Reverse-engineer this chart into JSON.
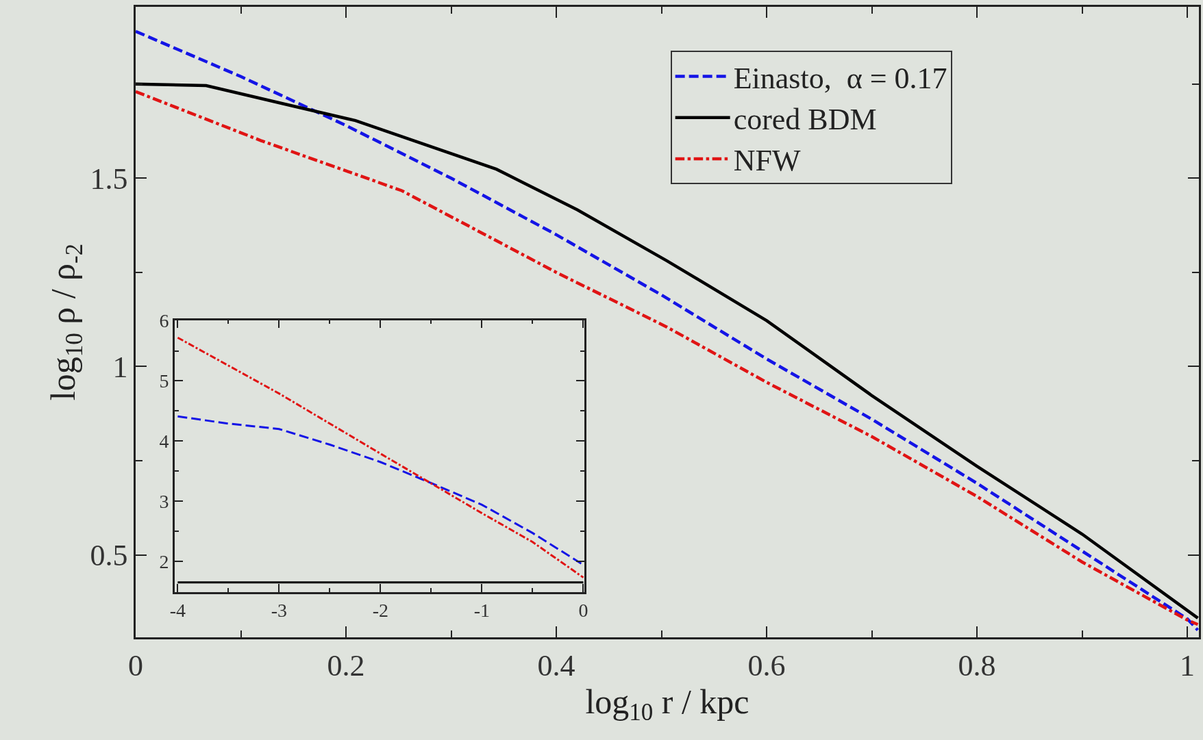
{
  "chart_data": [
    {
      "type": "line",
      "xlabel": "log$_{10}$ r / kpc",
      "ylabel": "log$_{10}$ ρ / ρ$_{-2}$",
      "xlim": [
        0,
        1.011
      ],
      "ylim": [
        0.281,
        1.955
      ],
      "xticks": [
        0,
        {
          "value": 0.1,
          "label": null
        },
        0.2,
        {
          "value": 0.3,
          "label": null
        },
        0.4,
        {
          "value": 0.5,
          "label": null
        },
        0.6,
        {
          "value": 0.7,
          "label": null
        },
        0.8,
        {
          "value": 0.9,
          "label": null
        },
        1
      ],
      "yticks": [
        {
          "value": 0.75,
          "label": null
        },
        0.5,
        1,
        {
          "value": 1.25,
          "label": null
        },
        1.5,
        {
          "value": 1.75,
          "label": null
        }
      ],
      "grid": false,
      "legend": "top right",
      "marker": "none",
      "series": [
        {
          "name": "Einasto,  α = 0.17",
          "color": "#1414e6",
          "line_style": "dashed",
          "x": [
            0,
            0.1,
            0.2,
            0.3,
            0.4,
            0.5,
            0.6,
            0.7,
            0.8,
            0.9,
            1.0,
            1.01
          ],
          "values": [
            1.89,
            1.77,
            1.64,
            1.5,
            1.35,
            1.19,
            1.02,
            0.86,
            0.69,
            0.51,
            0.33,
            0.3
          ]
        },
        {
          "name": "cored BDM",
          "color": "#000000",
          "line_style": "solid",
          "x": [
            0,
            0.067,
            0.152,
            0.209,
            0.343,
            0.42,
            0.505,
            0.6,
            0.7,
            0.8,
            0.9,
            1.01
          ],
          "values": [
            1.75,
            1.746,
            1.69,
            1.653,
            1.524,
            1.416,
            1.281,
            1.122,
            0.923,
            0.735,
            0.555,
            0.332
          ]
        },
        {
          "name": "NFW",
          "color": "#e01414",
          "line_style": "dashdot",
          "x": [
            0,
            0.119,
            0.253,
            0.4,
            0.505,
            0.6,
            0.7,
            0.8,
            0.9,
            1.0,
            1.01
          ],
          "values": [
            1.73,
            1.6,
            1.467,
            1.25,
            1.105,
            0.958,
            0.814,
            0.655,
            0.481,
            0.327,
            0.315
          ]
        }
      ]
    },
    {
      "type": "line",
      "xlim": [
        -4.03,
        0.01
      ],
      "ylim": [
        1.49,
        6.01
      ],
      "xticks": [
        -4,
        {
          "value": -3.5,
          "label": null
        },
        -3,
        {
          "value": -2.5,
          "label": null
        },
        -2,
        {
          "value": -1.5,
          "label": null
        },
        -1,
        {
          "value": -0.5,
          "label": null
        },
        0
      ],
      "yticks": [
        2,
        {
          "value": 2.5,
          "label": null
        },
        3,
        {
          "value": 3.5,
          "label": null
        },
        4,
        {
          "value": 4.5,
          "label": null
        },
        5,
        {
          "value": 5.5,
          "label": null
        },
        6
      ],
      "grid": false,
      "legend": false,
      "marker": "none",
      "series": [
        {
          "color": "#1414e6",
          "line_style": "dashed",
          "x": [
            -4,
            -3.5,
            -3,
            -2.5,
            -2,
            -1.5,
            -1,
            -0.5,
            0
          ],
          "values": [
            4.41,
            4.29,
            4.2,
            3.94,
            3.65,
            3.3,
            2.94,
            2.47,
            1.94
          ]
        },
        {
          "color": "#000000",
          "line_style": "solid",
          "x": [
            -4,
            0
          ],
          "values": [
            1.65,
            1.65
          ]
        },
        {
          "color": "#e01414",
          "line_style": "dashdot",
          "x": [
            -4,
            -3,
            -2,
            -1,
            -0.5,
            0
          ],
          "values": [
            5.72,
            4.79,
            3.79,
            2.8,
            2.32,
            1.73
          ]
        }
      ]
    }
  ]
}
